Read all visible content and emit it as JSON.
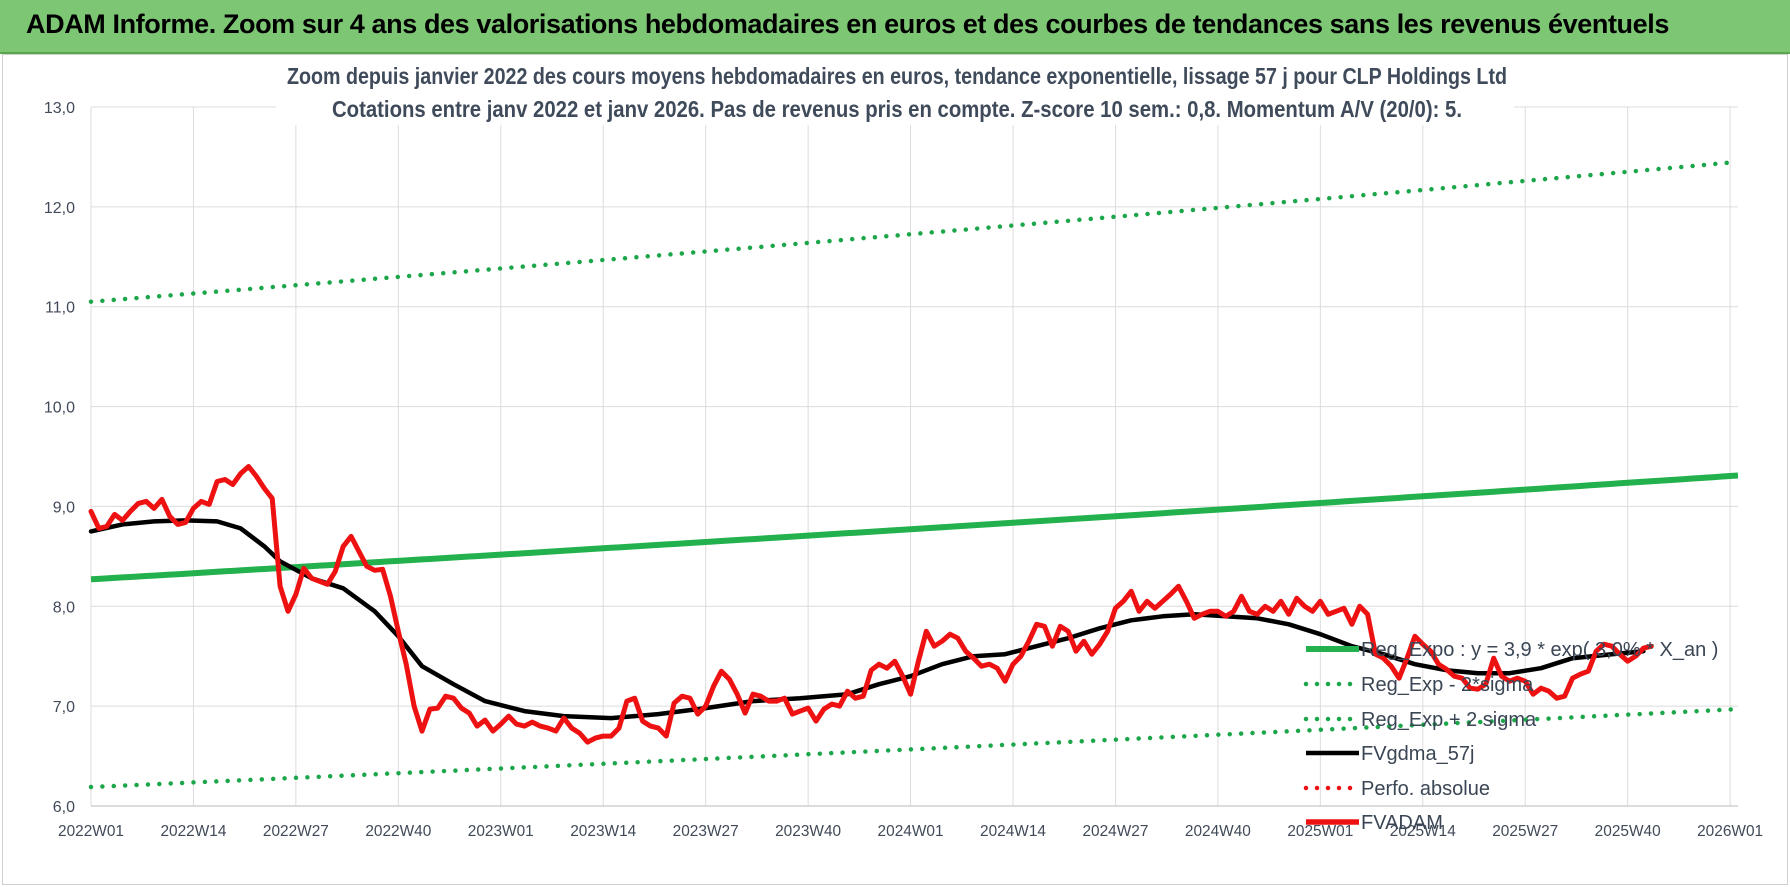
{
  "banner": {
    "title": "ADAM Informe. Zoom sur 4 ans des valorisations hebdomadaires en euros et des courbes de tendances sans les revenus éventuels"
  },
  "colors": {
    "banner_bg": "#7dc774",
    "fvadam": "#ee1111",
    "fvgdma": "#000000",
    "reg_expo": "#22b14c",
    "sigma": "#1ca64a",
    "perfo": "#ee1111"
  },
  "chart_data": {
    "type": "line",
    "title_line1": "Zoom depuis janvier 2022 des cours moyens hebdomadaires en euros, tendance exponentielle, lissage 57 j pour CLP Holdings Ltd",
    "title_line2": "Cotations entre janv 2022 et janv 2026. Pas de revenus pris en compte. Z-score 10 sem.: 0,8. Momentum A/V (20/0): 5.",
    "ylim": [
      6.0,
      13.0
    ],
    "yticks": [
      "6,0",
      "7,0",
      "8,0",
      "9,0",
      "10,0",
      "11,0",
      "12,0",
      "13,0"
    ],
    "xticks": [
      "2022W01",
      "2022W14",
      "2022W27",
      "2022W40",
      "2023W01",
      "2023W14",
      "2023W27",
      "2023W40",
      "2024W01",
      "2024W14",
      "2024W27",
      "2024W40",
      "2025W01",
      "2025W14",
      "2025W27",
      "2025W40",
      "2026W01"
    ],
    "grid": true,
    "legend_position": "right",
    "series": [
      {
        "name": "Reg_Expo : y = 3,9 * exp( 3,0% *  X_an )",
        "style": "solid-thick",
        "color": "#22b14c",
        "start": 8.27,
        "end": 9.31
      },
      {
        "name": "Reg_Exp - 2*sigma",
        "style": "dotted",
        "color": "#1ca64a",
        "start": 6.19,
        "end": 6.97
      },
      {
        "name": "Reg_Exp + 2 sigma",
        "style": "dotted",
        "color": "#1ca64a",
        "start": 11.05,
        "end": 12.45
      },
      {
        "name": "FVgdma_57j",
        "style": "solid",
        "color": "#000000",
        "points": [
          [
            0,
            8.75
          ],
          [
            4,
            8.82
          ],
          [
            8,
            8.85
          ],
          [
            12,
            8.86
          ],
          [
            16,
            8.85
          ],
          [
            19,
            8.78
          ],
          [
            22,
            8.6
          ],
          [
            24,
            8.45
          ],
          [
            28,
            8.28
          ],
          [
            32,
            8.18
          ],
          [
            36,
            7.95
          ],
          [
            39,
            7.7
          ],
          [
            42,
            7.4
          ],
          [
            46,
            7.22
          ],
          [
            50,
            7.05
          ],
          [
            55,
            6.95
          ],
          [
            60,
            6.9
          ],
          [
            66,
            6.88
          ],
          [
            72,
            6.92
          ],
          [
            78,
            6.98
          ],
          [
            84,
            7.05
          ],
          [
            90,
            7.08
          ],
          [
            96,
            7.12
          ],
          [
            100,
            7.22
          ],
          [
            104,
            7.3
          ],
          [
            108,
            7.42
          ],
          [
            112,
            7.5
          ],
          [
            116,
            7.52
          ],
          [
            120,
            7.6
          ],
          [
            124,
            7.68
          ],
          [
            128,
            7.78
          ],
          [
            132,
            7.86
          ],
          [
            136,
            7.9
          ],
          [
            140,
            7.92
          ],
          [
            144,
            7.9
          ],
          [
            148,
            7.88
          ],
          [
            152,
            7.82
          ],
          [
            156,
            7.72
          ],
          [
            160,
            7.6
          ],
          [
            164,
            7.52
          ],
          [
            168,
            7.42
          ],
          [
            172,
            7.36
          ],
          [
            176,
            7.33
          ],
          [
            180,
            7.33
          ],
          [
            184,
            7.38
          ],
          [
            188,
            7.48
          ],
          [
            193,
            7.52
          ],
          [
            197,
            7.55
          ]
        ]
      },
      {
        "name": "Perfo. absolue",
        "style": "dotted",
        "color": "#ee1111"
      },
      {
        "name": "FVADAM",
        "style": "solid-thick",
        "color": "#ee1111",
        "points": [
          [
            0,
            8.95
          ],
          [
            1,
            8.78
          ],
          [
            2,
            8.8
          ],
          [
            3,
            8.92
          ],
          [
            4,
            8.86
          ],
          [
            5,
            8.95
          ],
          [
            6,
            9.03
          ],
          [
            7,
            9.05
          ],
          [
            8,
            8.98
          ],
          [
            9,
            9.07
          ],
          [
            10,
            8.9
          ],
          [
            11,
            8.82
          ],
          [
            12,
            8.84
          ],
          [
            13,
            8.98
          ],
          [
            14,
            9.05
          ],
          [
            15,
            9.02
          ],
          [
            16,
            9.25
          ],
          [
            17,
            9.27
          ],
          [
            18,
            9.22
          ],
          [
            19,
            9.33
          ],
          [
            20,
            9.4
          ],
          [
            21,
            9.3
          ],
          [
            22,
            9.18
          ],
          [
            23,
            9.08
          ],
          [
            24,
            8.2
          ],
          [
            25,
            7.95
          ],
          [
            26,
            8.12
          ],
          [
            27,
            8.38
          ],
          [
            28,
            8.28
          ],
          [
            29,
            8.25
          ],
          [
            30,
            8.22
          ],
          [
            31,
            8.35
          ],
          [
            32,
            8.6
          ],
          [
            33,
            8.7
          ],
          [
            34,
            8.55
          ],
          [
            35,
            8.4
          ],
          [
            36,
            8.36
          ],
          [
            37,
            8.37
          ],
          [
            38,
            8.1
          ],
          [
            39,
            7.75
          ],
          [
            40,
            7.42
          ],
          [
            41,
            7.0
          ],
          [
            42,
            6.75
          ],
          [
            43,
            6.97
          ],
          [
            44,
            6.98
          ],
          [
            45,
            7.1
          ],
          [
            46,
            7.08
          ],
          [
            47,
            6.98
          ],
          [
            48,
            6.93
          ],
          [
            49,
            6.8
          ],
          [
            50,
            6.86
          ],
          [
            51,
            6.75
          ],
          [
            52,
            6.82
          ],
          [
            53,
            6.9
          ],
          [
            54,
            6.82
          ],
          [
            55,
            6.8
          ],
          [
            56,
            6.84
          ],
          [
            57,
            6.8
          ],
          [
            58,
            6.78
          ],
          [
            59,
            6.75
          ],
          [
            60,
            6.88
          ],
          [
            61,
            6.78
          ],
          [
            62,
            6.73
          ],
          [
            63,
            6.64
          ],
          [
            64,
            6.68
          ],
          [
            65,
            6.7
          ],
          [
            66,
            6.7
          ],
          [
            67,
            6.78
          ],
          [
            68,
            7.05
          ],
          [
            69,
            7.08
          ],
          [
            70,
            6.85
          ],
          [
            71,
            6.8
          ],
          [
            72,
            6.78
          ],
          [
            73,
            6.7
          ],
          [
            74,
            7.03
          ],
          [
            75,
            7.1
          ],
          [
            76,
            7.08
          ],
          [
            77,
            6.92
          ],
          [
            78,
            7.0
          ],
          [
            79,
            7.2
          ],
          [
            80,
            7.35
          ],
          [
            81,
            7.27
          ],
          [
            82,
            7.12
          ],
          [
            83,
            6.93
          ],
          [
            84,
            7.12
          ],
          [
            85,
            7.1
          ],
          [
            86,
            7.05
          ],
          [
            87,
            7.05
          ],
          [
            88,
            7.08
          ],
          [
            89,
            6.92
          ],
          [
            90,
            6.95
          ],
          [
            91,
            6.98
          ],
          [
            92,
            6.85
          ],
          [
            93,
            6.97
          ],
          [
            94,
            7.02
          ],
          [
            95,
            7.0
          ],
          [
            96,
            7.15
          ],
          [
            97,
            7.08
          ],
          [
            98,
            7.1
          ],
          [
            99,
            7.36
          ],
          [
            100,
            7.42
          ],
          [
            101,
            7.38
          ],
          [
            102,
            7.45
          ],
          [
            103,
            7.3
          ],
          [
            104,
            7.12
          ],
          [
            105,
            7.45
          ],
          [
            106,
            7.75
          ],
          [
            107,
            7.6
          ],
          [
            108,
            7.65
          ],
          [
            109,
            7.72
          ],
          [
            110,
            7.68
          ],
          [
            111,
            7.55
          ],
          [
            112,
            7.48
          ],
          [
            113,
            7.4
          ],
          [
            114,
            7.42
          ],
          [
            115,
            7.38
          ],
          [
            116,
            7.25
          ],
          [
            117,
            7.42
          ],
          [
            118,
            7.5
          ],
          [
            119,
            7.65
          ],
          [
            120,
            7.82
          ],
          [
            121,
            7.8
          ],
          [
            122,
            7.6
          ],
          [
            123,
            7.8
          ],
          [
            124,
            7.75
          ],
          [
            125,
            7.55
          ],
          [
            126,
            7.65
          ],
          [
            127,
            7.52
          ],
          [
            128,
            7.62
          ],
          [
            129,
            7.75
          ],
          [
            130,
            7.98
          ],
          [
            131,
            8.05
          ],
          [
            132,
            8.15
          ],
          [
            133,
            7.95
          ],
          [
            134,
            8.05
          ],
          [
            135,
            7.98
          ],
          [
            136,
            8.05
          ],
          [
            137,
            8.12
          ],
          [
            138,
            8.2
          ],
          [
            139,
            8.05
          ],
          [
            140,
            7.88
          ],
          [
            141,
            7.92
          ],
          [
            142,
            7.95
          ],
          [
            143,
            7.95
          ],
          [
            144,
            7.9
          ],
          [
            145,
            7.95
          ],
          [
            146,
            8.1
          ],
          [
            147,
            7.95
          ],
          [
            148,
            7.92
          ],
          [
            149,
            8.0
          ],
          [
            150,
            7.95
          ],
          [
            151,
            8.05
          ],
          [
            152,
            7.92
          ],
          [
            153,
            8.08
          ],
          [
            154,
            8.0
          ],
          [
            155,
            7.95
          ],
          [
            156,
            8.05
          ],
          [
            157,
            7.92
          ],
          [
            158,
            7.95
          ],
          [
            159,
            7.98
          ],
          [
            160,
            7.82
          ],
          [
            161,
            8.0
          ],
          [
            162,
            7.92
          ],
          [
            163,
            7.52
          ],
          [
            164,
            7.48
          ],
          [
            165,
            7.4
          ],
          [
            166,
            7.28
          ],
          [
            167,
            7.48
          ],
          [
            168,
            7.7
          ],
          [
            169,
            7.62
          ],
          [
            170,
            7.55
          ],
          [
            171,
            7.42
          ],
          [
            172,
            7.37
          ],
          [
            173,
            7.3
          ],
          [
            174,
            7.28
          ],
          [
            175,
            7.18
          ],
          [
            176,
            7.17
          ],
          [
            177,
            7.22
          ],
          [
            178,
            7.48
          ],
          [
            179,
            7.3
          ],
          [
            180,
            7.25
          ],
          [
            181,
            7.28
          ],
          [
            182,
            7.25
          ],
          [
            183,
            7.12
          ],
          [
            184,
            7.18
          ],
          [
            185,
            7.15
          ],
          [
            186,
            7.08
          ],
          [
            187,
            7.1
          ],
          [
            188,
            7.28
          ],
          [
            189,
            7.32
          ],
          [
            190,
            7.35
          ],
          [
            191,
            7.55
          ],
          [
            192,
            7.62
          ],
          [
            193,
            7.6
          ],
          [
            194,
            7.52
          ],
          [
            195,
            7.45
          ],
          [
            196,
            7.5
          ],
          [
            197,
            7.58
          ],
          [
            198,
            7.6
          ]
        ]
      }
    ]
  }
}
